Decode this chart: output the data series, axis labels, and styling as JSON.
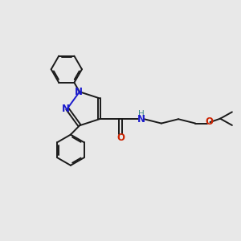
{
  "bg_color": "#e8e8e8",
  "bond_color": "#1a1a1a",
  "n_color": "#1a1acc",
  "o_color": "#cc2200",
  "h_color": "#3a8a8a",
  "font_size": 8.5,
  "lw": 1.4,
  "xlim": [
    0,
    10
  ],
  "ylim": [
    0,
    10
  ]
}
